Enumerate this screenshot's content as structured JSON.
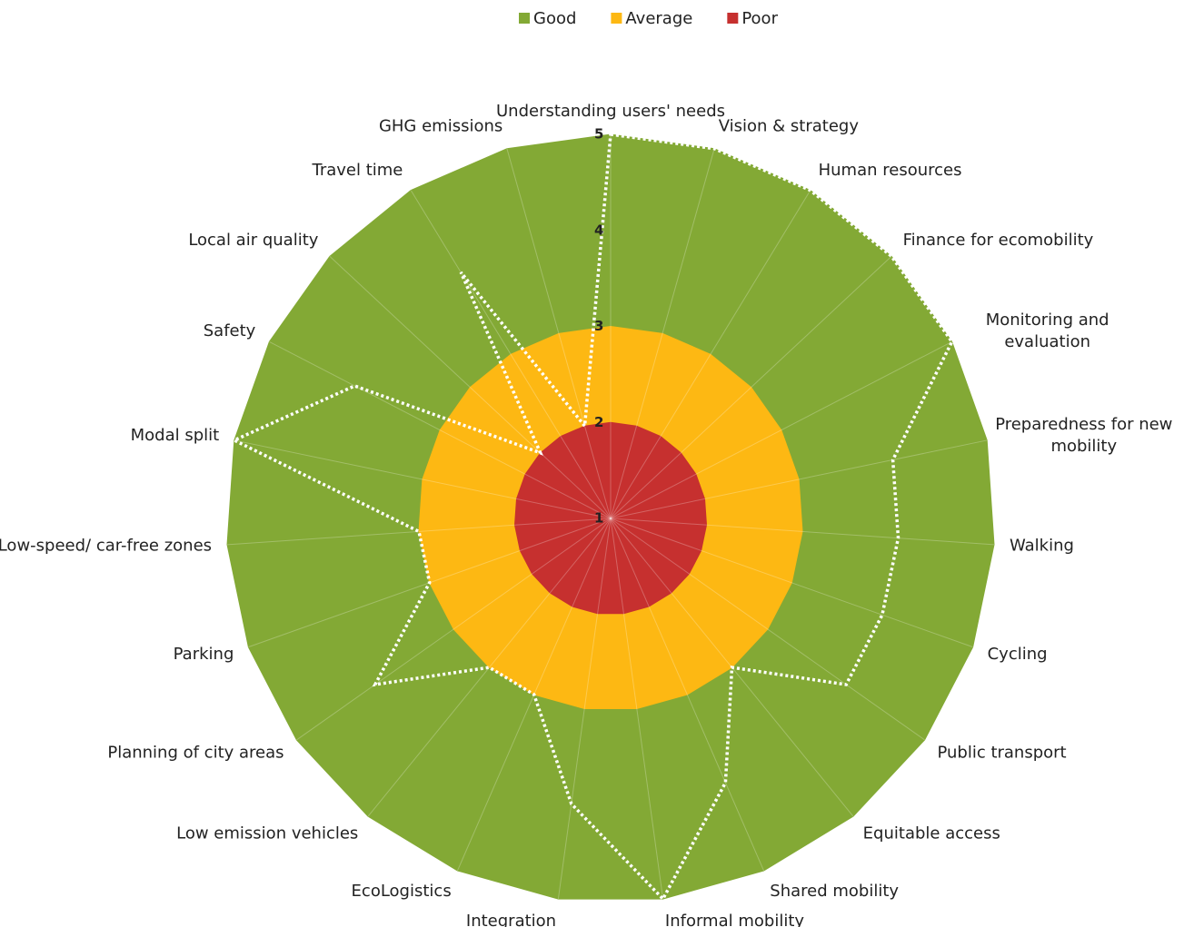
{
  "chart_data": {
    "type": "radar",
    "categories": [
      "Understanding users' needs",
      "Vision & strategy",
      "Human resources",
      "Finance for ecomobility",
      "Monitoring and evaluation",
      "Preparedness for new mobility",
      "Walking",
      "Cycling",
      "Public transport",
      "Equitable access",
      "Shared mobility",
      "Informal mobility",
      "Integration",
      "EcoLogistics",
      "Low emission vehicles",
      "Planning of city areas",
      "Parking",
      "Low-speed/ car-free zones",
      "Modal split",
      "Safety",
      "Local air quality",
      "Travel time",
      "GHG emissions"
    ],
    "series": [
      {
        "name": "Good",
        "color": "#83a935",
        "values": [
          5,
          5,
          5,
          5,
          5,
          5,
          5,
          5,
          5,
          5,
          5,
          5,
          5,
          5,
          5,
          5,
          5,
          5,
          5,
          5,
          5,
          5,
          5
        ]
      },
      {
        "name": "Average",
        "color": "#fdb813",
        "values": [
          3,
          3,
          3,
          3,
          3,
          3,
          3,
          3,
          3,
          3,
          3,
          3,
          3,
          3,
          3,
          3,
          3,
          3,
          3,
          3,
          3,
          3,
          3
        ]
      },
      {
        "name": "Poor",
        "color": "#c6302f",
        "values": [
          2,
          2,
          2,
          2,
          2,
          2,
          2,
          2,
          2,
          2,
          2,
          2,
          2,
          2,
          2,
          2,
          2,
          2,
          2,
          2,
          2,
          2,
          2
        ]
      },
      {
        "color": "#ffffff",
        "values": [
          5,
          5,
          5,
          5,
          5,
          4,
          4,
          4,
          4,
          3,
          4,
          5,
          4,
          3,
          3,
          4,
          3,
          3,
          5,
          4,
          2,
          4,
          2
        ]
      }
    ],
    "ylim": [
      1,
      5
    ],
    "yticks": [
      1,
      2,
      3,
      4,
      5
    ],
    "legend": "top"
  }
}
